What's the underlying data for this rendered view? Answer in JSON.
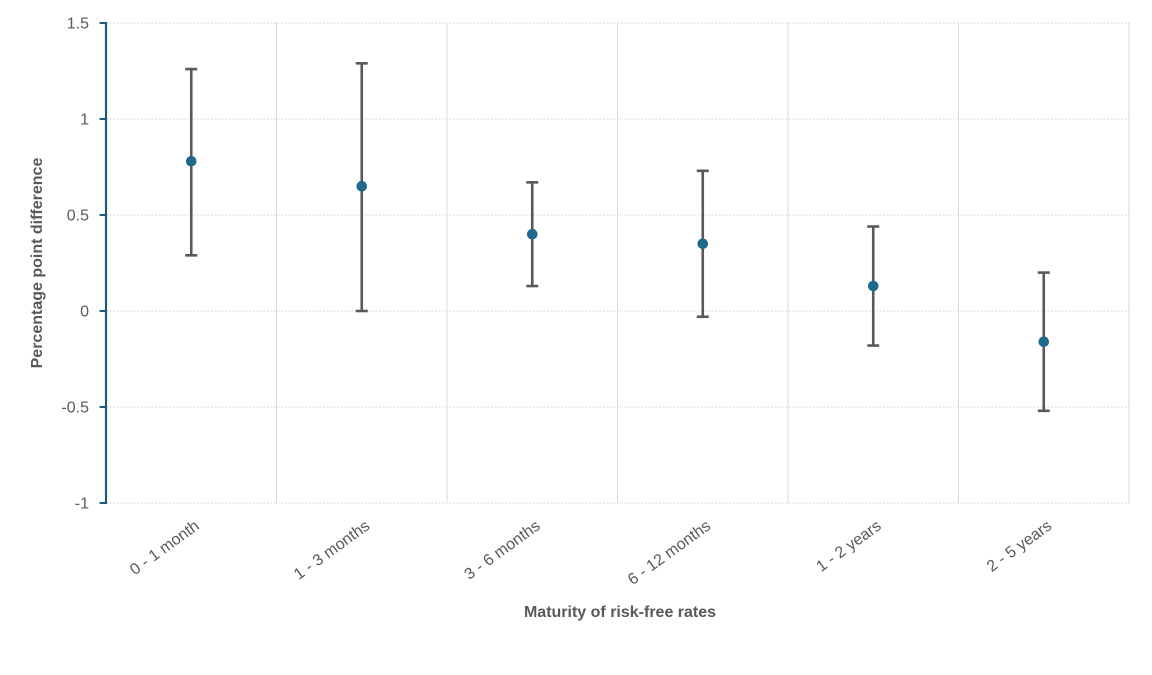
{
  "chart_data": {
    "type": "scatter",
    "subtype": "dot-with-error-bars",
    "title": "",
    "categories": [
      "0 - 1 month",
      "1 - 3 months",
      "3 - 6 months",
      "6 - 12 months",
      "1 - 2 years",
      "2 - 5 years"
    ],
    "values": [
      0.78,
      0.65,
      0.4,
      0.35,
      0.13,
      -0.16
    ],
    "error_upper": [
      1.26,
      1.29,
      0.67,
      0.73,
      0.44,
      0.2
    ],
    "error_lower": [
      0.29,
      0.0,
      0.13,
      -0.03,
      -0.18,
      -0.52
    ],
    "xlabel": "Maturity of risk-free rates",
    "ylabel": "Percentage point difference",
    "ylim": [
      -1,
      1.5
    ],
    "yticks": [
      1.5,
      1,
      0.5,
      0,
      -0.5,
      -1
    ],
    "ytick_labels": [
      "1.5",
      "1",
      "0.5",
      "0",
      "-0.5",
      "-1"
    ],
    "grid": "horizontal-dotted and vertical category boundaries",
    "legend": "none",
    "colors": {
      "marker": "#1F698C",
      "error_bar": "#595959",
      "axis_line": "#1E5B7A",
      "gridline": "#D9D9D9",
      "tick_text": "#595959",
      "title_text": "#595959",
      "background": "#FFFFFF"
    }
  }
}
